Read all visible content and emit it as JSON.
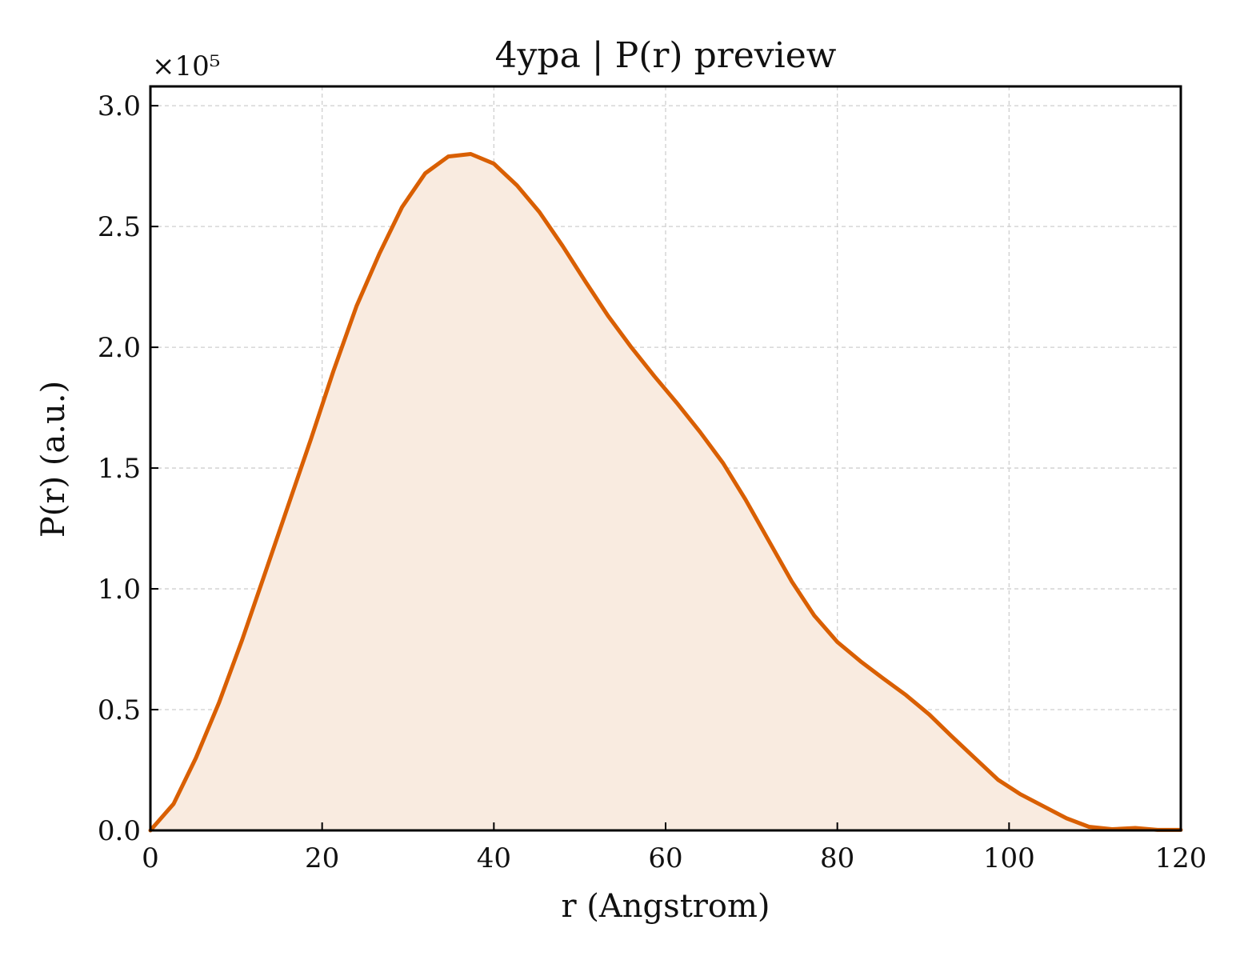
{
  "chart_data": {
    "type": "area",
    "title": "4ypa | P(r) preview",
    "xlabel": "r (Angstrom)",
    "ylabel": "P(r) (a.u.)",
    "y_multiplier_label": "×10⁵",
    "xlim": [
      0,
      120
    ],
    "ylim": [
      0,
      3.08
    ],
    "xticks": [
      0,
      20,
      40,
      60,
      80,
      100,
      120
    ],
    "xtick_labels": [
      "0",
      "20",
      "40",
      "60",
      "80",
      "100",
      "120"
    ],
    "yticks": [
      0,
      0.5,
      1.0,
      1.5,
      2.0,
      2.5,
      3.0
    ],
    "ytick_labels": [
      "0.0",
      "0.5",
      "1.0",
      "1.5",
      "2.0",
      "2.5",
      "3.0"
    ],
    "grid": true,
    "colors": {
      "line": "#d95f02",
      "fill": "#f9ebe0"
    },
    "series": [
      {
        "x": [
          0,
          2.7,
          5.3,
          8,
          10.7,
          13.3,
          16,
          18.7,
          21.3,
          24,
          26.7,
          29.3,
          32,
          34.7,
          37.3,
          40,
          42.7,
          45.3,
          48,
          50.7,
          53.3,
          56,
          58.7,
          61.3,
          64,
          66.7,
          69.3,
          72,
          74.7,
          77.3,
          80,
          82.7,
          85.3,
          88,
          90.7,
          93.3,
          96,
          98.7,
          101.3,
          104,
          106.7,
          109.3,
          112,
          114.7,
          117.3,
          120
        ],
        "y": [
          0,
          0.11,
          0.3,
          0.53,
          0.79,
          1.06,
          1.34,
          1.62,
          1.9,
          2.17,
          2.39,
          2.58,
          2.72,
          2.79,
          2.8,
          2.76,
          2.67,
          2.56,
          2.42,
          2.27,
          2.13,
          2.0,
          1.88,
          1.77,
          1.65,
          1.52,
          1.37,
          1.2,
          1.03,
          0.89,
          0.78,
          0.7,
          0.63,
          0.56,
          0.48,
          0.39,
          0.3,
          0.21,
          0.15,
          0.1,
          0.05,
          0.015,
          0.005,
          0.01,
          0.002,
          0.002
        ]
      }
    ]
  }
}
